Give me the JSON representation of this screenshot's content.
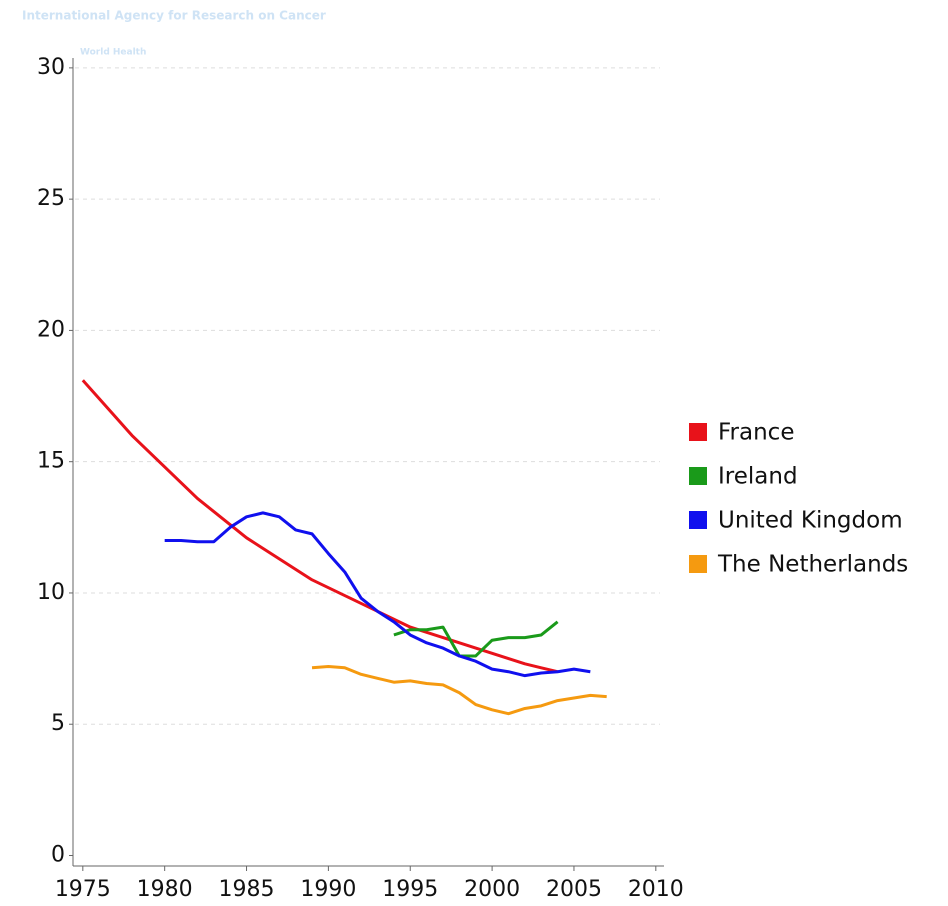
{
  "header": {
    "watermark": "International Agency for Research on Cancer",
    "watermark_sub": "World Health"
  },
  "chart_data": {
    "type": "line",
    "xlim": [
      1974.4,
      2010.5
    ],
    "xticks": [
      1975,
      1980,
      1985,
      1990,
      1995,
      2000,
      2005,
      2010
    ],
    "ylim": [
      -0.4,
      30.3
    ],
    "yticks": [
      0,
      5,
      10,
      15,
      20,
      25,
      30
    ],
    "grid": true,
    "legend": "right",
    "series": [
      {
        "name": "France",
        "color": "#e8121a",
        "x": [
          1975,
          1976,
          1977,
          1978,
          1979,
          1980,
          1981,
          1982,
          1983,
          1984,
          1985,
          1986,
          1987,
          1988,
          1989,
          1990,
          1991,
          1992,
          1993,
          1994,
          1995,
          1996,
          1997,
          1998,
          1999,
          2000,
          2001,
          2002,
          2003,
          2004
        ],
        "values": [
          18.1,
          17.4,
          16.7,
          16.0,
          15.4,
          14.8,
          14.2,
          13.6,
          13.1,
          12.6,
          12.1,
          11.7,
          11.3,
          10.9,
          10.5,
          10.2,
          9.9,
          9.6,
          9.3,
          9.0,
          8.7,
          8.5,
          8.3,
          8.1,
          7.9,
          7.7,
          7.5,
          7.3,
          7.15,
          7.0
        ]
      },
      {
        "name": "Ireland",
        "color": "#1a9a1a",
        "x": [
          1994,
          1995,
          1996,
          1997,
          1998,
          1999,
          2000,
          2001,
          2002,
          2003,
          2004
        ],
        "values": [
          8.4,
          8.6,
          8.6,
          8.7,
          7.6,
          7.6,
          8.2,
          8.3,
          8.3,
          8.4,
          8.9
        ]
      },
      {
        "name": "United Kingdom",
        "color": "#1010ee",
        "x": [
          1980,
          1981,
          1982,
          1983,
          1984,
          1985,
          1986,
          1987,
          1988,
          1989,
          1990,
          1991,
          1992,
          1993,
          1994,
          1995,
          1996,
          1997,
          1998,
          1999,
          2000,
          2001,
          2002,
          2003,
          2004,
          2005,
          2006
        ],
        "values": [
          12.0,
          12.0,
          11.95,
          11.95,
          12.5,
          12.9,
          13.05,
          12.9,
          12.4,
          12.25,
          11.5,
          10.8,
          9.8,
          9.3,
          8.9,
          8.4,
          8.1,
          7.9,
          7.6,
          7.4,
          7.1,
          7.0,
          6.85,
          6.95,
          7.0,
          7.1,
          7.0
        ]
      },
      {
        "name": "The Netherlands",
        "color": "#f59a10",
        "x": [
          1989,
          1990,
          1991,
          1992,
          1993,
          1994,
          1995,
          1996,
          1997,
          1998,
          1999,
          2000,
          2001,
          2002,
          2003,
          2004,
          2005,
          2006,
          2007
        ],
        "values": [
          7.15,
          7.2,
          7.15,
          6.9,
          6.75,
          6.6,
          6.65,
          6.55,
          6.5,
          6.2,
          5.75,
          5.55,
          5.4,
          5.6,
          5.7,
          5.9,
          6.0,
          6.1,
          6.05
        ]
      }
    ]
  }
}
